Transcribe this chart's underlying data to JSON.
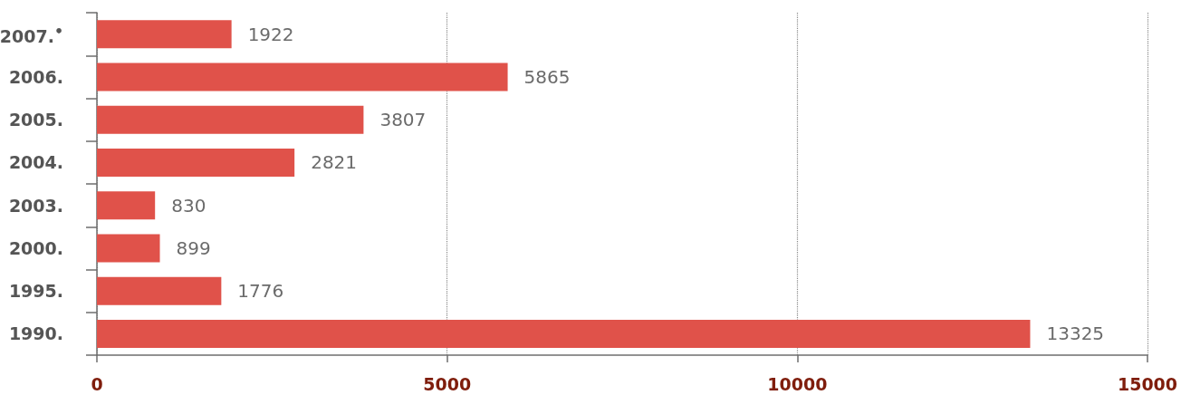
{
  "chart_data": {
    "type": "bar",
    "orientation": "horizontal",
    "categories": [
      "2007.$^{•}$",
      "2006.",
      "2005.",
      "2004.",
      "2003.",
      "2000.",
      "1995.",
      "1990."
    ],
    "values": [
      1922,
      5865,
      3807,
      2821,
      830,
      899,
      1776,
      13325
    ],
    "color": "#e0524a",
    "xlim": [
      0,
      15000
    ],
    "xticks": [
      0,
      5000,
      10000,
      15000
    ],
    "grid": "x",
    "data_labels": true
  }
}
